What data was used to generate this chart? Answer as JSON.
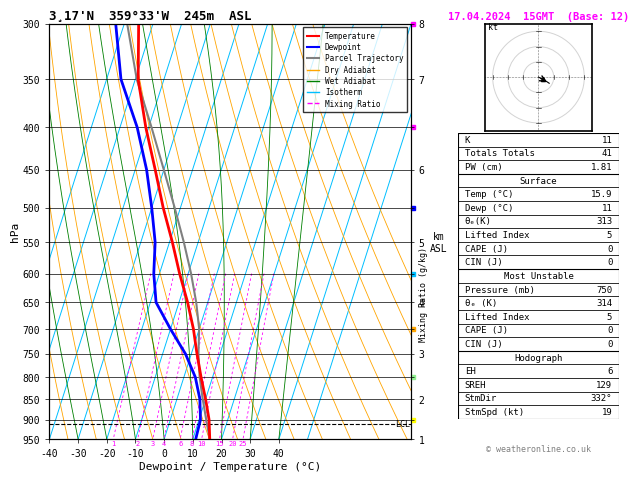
{
  "title_left": "3¸17'N  359°33'W  245m  ASL",
  "title_right": "17.04.2024  15GMT  (Base: 12)",
  "xlabel": "Dewpoint / Temperature (°C)",
  "ylabel_left": "hPa",
  "pressure_ticks": [
    300,
    350,
    400,
    450,
    500,
    550,
    600,
    650,
    700,
    750,
    800,
    850,
    900,
    950
  ],
  "km_labels": {
    "300": "8",
    "350": "7",
    "400": "",
    "450": "6",
    "500": "",
    "550": "5",
    "600": "",
    "650": "4",
    "700": "",
    "750": "3",
    "800": "",
    "850": "2",
    "900": "",
    "950": "1"
  },
  "temp_profile": {
    "pressure": [
      950,
      900,
      850,
      800,
      750,
      700,
      650,
      600,
      550,
      500,
      450,
      400,
      350,
      300
    ],
    "temp": [
      15.9,
      13.5,
      10.0,
      6.0,
      2.0,
      -2.0,
      -7.0,
      -13.0,
      -19.0,
      -26.0,
      -33.0,
      -41.0,
      -49.0,
      -55.0
    ]
  },
  "dewp_profile": {
    "pressure": [
      950,
      900,
      850,
      800,
      750,
      700,
      650,
      600,
      550,
      500,
      450,
      400,
      350,
      300
    ],
    "dewp": [
      11.0,
      10.5,
      8.0,
      4.0,
      -2.0,
      -10.0,
      -18.0,
      -22.0,
      -25.0,
      -30.0,
      -36.0,
      -44.0,
      -55.0,
      -63.0
    ]
  },
  "parcel_profile": {
    "pressure": [
      950,
      900,
      850,
      800,
      750,
      700,
      650,
      600,
      550,
      500,
      450,
      400,
      350,
      300
    ],
    "temp": [
      15.9,
      12.5,
      9.0,
      5.5,
      2.5,
      0.0,
      -4.0,
      -9.0,
      -15.0,
      -22.0,
      -30.0,
      -39.0,
      -49.5,
      -59.0
    ]
  },
  "lcl_pressure": 910,
  "mixing_ratios": [
    1,
    2,
    3,
    4,
    6,
    8,
    10,
    15,
    20,
    25
  ],
  "color_temp": "#ff0000",
  "color_dewp": "#0000ff",
  "color_parcel": "#808080",
  "color_dry_adiabat": "#ffa500",
  "color_wet_adiabat": "#008000",
  "color_isotherm": "#00bfff",
  "color_mixing_ratio": "#ff00ff",
  "wind_barb_colors": [
    "#ff00ff",
    "#ff00ff",
    "#0000ff",
    "#00bfff",
    "#ffa500",
    "#90ee90",
    "#ffff00"
  ],
  "wind_barb_pressures": [
    300,
    400,
    500,
    600,
    700,
    800,
    900
  ],
  "stats": {
    "K": "11",
    "Totals_Totals": "41",
    "PW_cm": "1.81",
    "Surface_Temp": "15.9",
    "Surface_Dewp": "11",
    "Surface_theta_e": "313",
    "Surface_LI": "5",
    "Surface_CAPE": "0",
    "Surface_CIN": "0",
    "MU_Pressure": "750",
    "MU_theta_e": "314",
    "MU_LI": "5",
    "MU_CAPE": "0",
    "MU_CIN": "0",
    "EH": "6",
    "SREH": "129",
    "StmDir": "332°",
    "StmSpd": "19"
  }
}
